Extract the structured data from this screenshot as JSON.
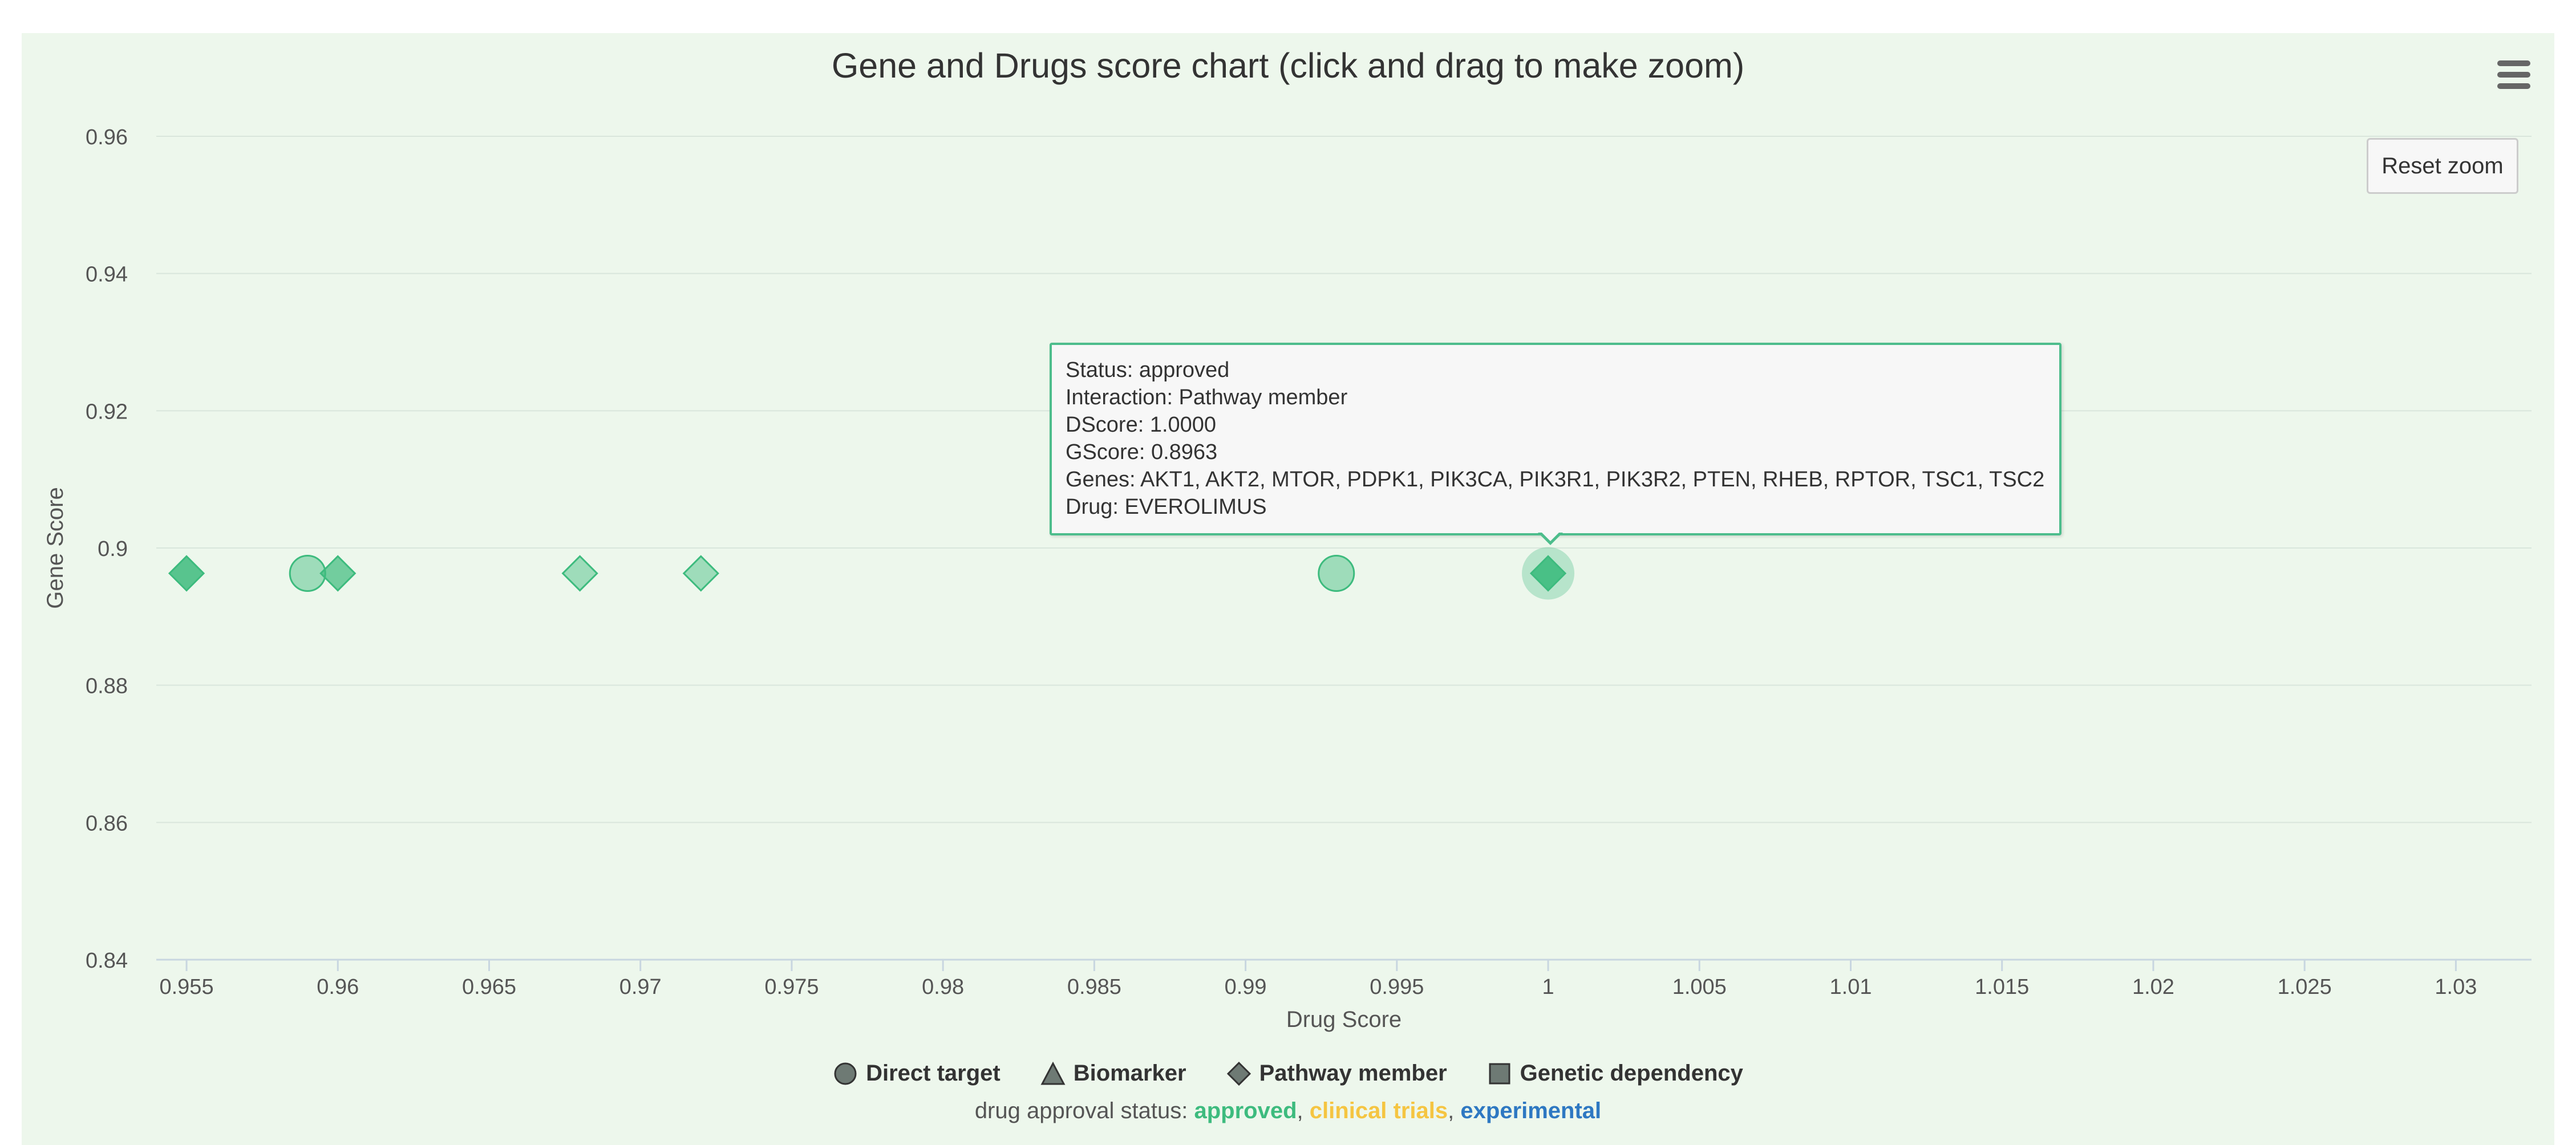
{
  "chart": {
    "title": "Gene and Drugs score chart (click and drag to make zoom)",
    "reset_zoom_label": "Reset zoom",
    "menu_icon": "hamburger-menu-icon"
  },
  "tooltip": {
    "lines": [
      "Status: approved",
      "Interaction: Pathway member",
      "DScore: 1.0000",
      "GScore: 0.8963",
      "Genes: AKT1, AKT2, MTOR, PDPK1, PIK3CA, PIK3R1, PIK3R2, PTEN, RHEB, RPTOR, TSC1, TSC2",
      "Drug: EVEROLIMUS"
    ]
  },
  "legend": {
    "items": [
      {
        "label": "Direct target",
        "symbol": "circle"
      },
      {
        "label": "Biomarker",
        "symbol": "triangle"
      },
      {
        "label": "Pathway member",
        "symbol": "diamond"
      },
      {
        "label": "Genetic dependency",
        "symbol": "square"
      }
    ],
    "status_prefix": "drug approval status:",
    "statuses": [
      {
        "label": "approved",
        "color": "#3dbb7e"
      },
      {
        "label": "clinical trials",
        "color": "#f5c542"
      },
      {
        "label": "experimental",
        "color": "#2e78c2"
      }
    ],
    "separator": ","
  },
  "chart_data": {
    "type": "scatter",
    "title": "Gene and Drugs score chart (click and drag to make zoom)",
    "xlabel": "Drug Score",
    "ylabel": "Gene Score",
    "xlim": [
      0.954,
      1.0325
    ],
    "ylim": [
      0.84,
      0.96
    ],
    "x_ticks": [
      0.955,
      0.96,
      0.965,
      0.97,
      0.975,
      0.98,
      0.985,
      0.99,
      0.995,
      1,
      1.005,
      1.01,
      1.015,
      1.02,
      1.025,
      1.03
    ],
    "x_tick_labels": [
      "0.955",
      "0.96",
      "0.965",
      "0.97",
      "0.975",
      "0.98",
      "0.985",
      "0.99",
      "0.995",
      "1",
      "1.005",
      "1.01",
      "1.015",
      "1.02",
      "1.025",
      "1.03"
    ],
    "y_ticks": [
      0.84,
      0.86,
      0.88,
      0.9,
      0.92,
      0.94,
      0.96
    ],
    "y_tick_labels": [
      "0.84",
      "0.86",
      "0.88",
      "0.9",
      "0.92",
      "0.94",
      "0.96"
    ],
    "grid": true,
    "legend_position": "bottom",
    "points": [
      {
        "x": 0.955,
        "y": 0.8963,
        "symbol": "diamond",
        "status": "approved",
        "opacity": 0.85
      },
      {
        "x": 0.959,
        "y": 0.8963,
        "symbol": "circle",
        "status": "approved",
        "opacity": 0.45
      },
      {
        "x": 0.96,
        "y": 0.8963,
        "symbol": "diamond",
        "status": "approved",
        "opacity": 0.7
      },
      {
        "x": 0.968,
        "y": 0.8963,
        "symbol": "diamond",
        "status": "approved",
        "opacity": 0.45
      },
      {
        "x": 0.972,
        "y": 0.8963,
        "symbol": "diamond",
        "status": "approved",
        "opacity": 0.45
      },
      {
        "x": 0.993,
        "y": 0.8963,
        "symbol": "circle",
        "status": "approved",
        "opacity": 0.45
      },
      {
        "x": 1.0,
        "y": 0.8963,
        "symbol": "diamond",
        "status": "approved",
        "opacity": 0.9,
        "hovered": true
      }
    ]
  }
}
